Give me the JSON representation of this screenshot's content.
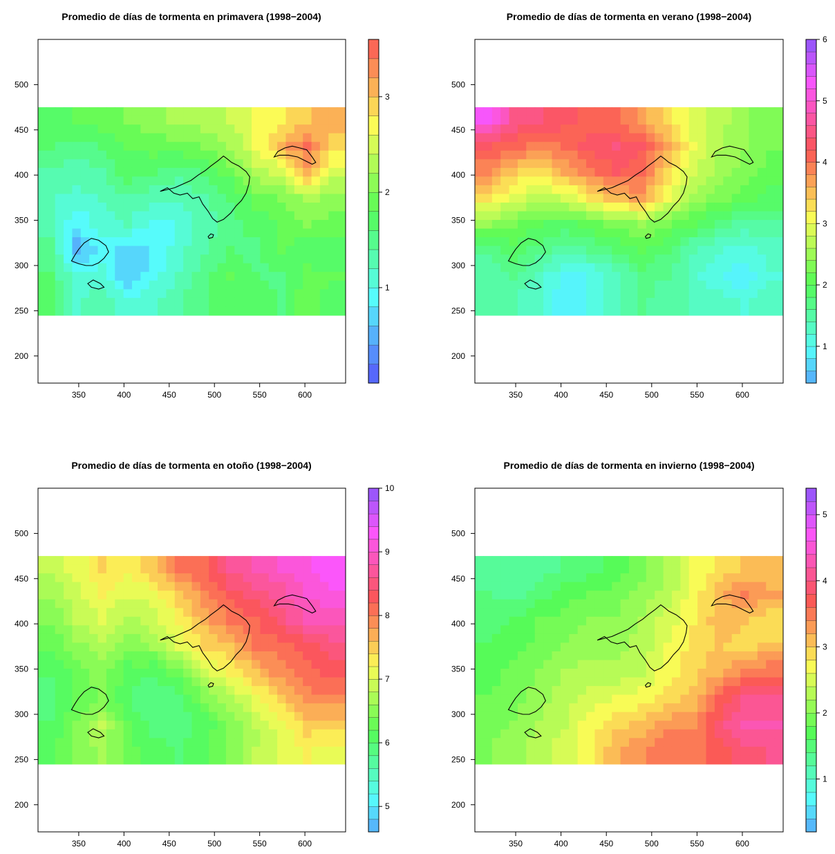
{
  "figure": {
    "panels": [
      {
        "title": "Promedio de días de tormenta en primavera (1998−2004)",
        "colorbar": {
          "ticks": [
            "1",
            "2",
            "3"
          ],
          "tick_values": [
            1,
            2,
            3
          ],
          "range": [
            0.0,
            3.6
          ],
          "levels": 18,
          "palette": "ramp_up"
        }
      },
      {
        "title": "Promedio de días de tormenta en verano (1998−2004)",
        "colorbar": {
          "ticks": [
            "1",
            "2",
            "3",
            "4",
            "5",
            "6"
          ],
          "tick_values": [
            1,
            2,
            3,
            4,
            5,
            6
          ],
          "range": [
            0.4,
            6.0
          ],
          "levels": 28,
          "palette": "ramp_down"
        }
      },
      {
        "title": "Promedio de días de tormenta en otoño (1998−2004)",
        "colorbar": {
          "ticks": [
            "5",
            "6",
            "7",
            "8",
            "9",
            "10"
          ],
          "tick_values": [
            5,
            6,
            7,
            8,
            9,
            10
          ],
          "range": [
            4.6,
            10.0
          ],
          "levels": 27,
          "palette": "ramp_down"
        }
      },
      {
        "title": "Promedio de días de tormenta en invierno (1998−2004)",
        "colorbar": {
          "ticks": [
            "1",
            "2",
            "3",
            "4",
            "5"
          ],
          "tick_values": [
            1,
            2,
            3,
            4,
            5
          ],
          "range": [
            0.2,
            5.4
          ],
          "levels": 26,
          "palette": "ramp_down"
        }
      }
    ]
  },
  "chart_data": [
    {
      "type": "heatmap",
      "title": "Promedio de días de tormenta en primavera (1998−2004)",
      "x_ticks": [
        350,
        400,
        450,
        500,
        550,
        600
      ],
      "y_ticks": [
        200,
        250,
        300,
        350,
        400,
        450,
        500
      ],
      "xlim": [
        305,
        645
      ],
      "ylim": [
        170,
        550
      ],
      "data_extent": {
        "x": [
          305,
          645
        ],
        "y": [
          245,
          475
        ]
      },
      "value_range": [
        0.0,
        3.6
      ],
      "colorbar_ticks": [
        1,
        2,
        3
      ],
      "field_grid": {
        "rows_top_to_bottom": true,
        "values": [
          [
            1.7,
            1.8,
            1.9,
            2.0,
            2.1,
            2.3,
            2.3,
            2.4,
            2.6,
            2.7,
            3.0,
            3.1
          ],
          [
            1.6,
            1.5,
            1.6,
            1.8,
            1.9,
            1.9,
            2.0,
            2.2,
            2.6,
            3.1,
            3.4,
            2.9
          ],
          [
            1.4,
            1.3,
            1.4,
            1.7,
            1.6,
            1.5,
            1.6,
            1.9,
            2.3,
            2.5,
            3.1,
            2.5
          ],
          [
            1.2,
            1.1,
            1.2,
            1.4,
            1.3,
            1.2,
            1.4,
            1.6,
            1.9,
            2.0,
            2.3,
            2.1
          ],
          [
            1.3,
            0.8,
            1.1,
            1.2,
            0.9,
            1.0,
            1.3,
            1.5,
            1.7,
            1.8,
            2.0,
            1.9
          ],
          [
            1.5,
            0.5,
            0.9,
            0.7,
            0.8,
            1.1,
            1.4,
            1.6,
            1.5,
            1.9,
            1.6,
            1.7
          ],
          [
            1.6,
            1.0,
            1.1,
            0.6,
            0.9,
            1.2,
            1.5,
            1.8,
            1.6,
            1.5,
            1.9,
            1.8
          ],
          [
            1.8,
            1.2,
            1.3,
            1.1,
            1.2,
            1.4,
            1.6,
            1.7,
            1.8,
            1.6,
            2.0,
            1.6
          ]
        ]
      }
    },
    {
      "type": "heatmap",
      "title": "Promedio de días de tormenta en verano (1998−2004)",
      "x_ticks": [
        350,
        400,
        450,
        500,
        550,
        600
      ],
      "y_ticks": [
        200,
        250,
        300,
        350,
        400,
        450,
        500
      ],
      "xlim": [
        305,
        645
      ],
      "ylim": [
        170,
        550
      ],
      "data_extent": {
        "x": [
          305,
          645
        ],
        "y": [
          245,
          475
        ]
      },
      "value_range": [
        0.4,
        6.0
      ],
      "colorbar_ticks": [
        1,
        2,
        3,
        4,
        5,
        6
      ],
      "field_grid": {
        "rows_top_to_bottom": true,
        "values": [
          [
            5.3,
            4.6,
            4.4,
            4.3,
            4.1,
            4.0,
            3.7,
            3.3,
            2.9,
            2.7,
            2.4,
            2.3
          ],
          [
            4.2,
            4.1,
            3.9,
            4.0,
            4.3,
            4.4,
            4.2,
            3.6,
            3.0,
            2.6,
            2.4,
            2.2
          ],
          [
            3.8,
            3.4,
            3.2,
            3.6,
            3.9,
            4.2,
            4.1,
            3.3,
            2.8,
            2.5,
            2.3,
            2.1
          ],
          [
            3.3,
            2.9,
            2.7,
            2.8,
            3.2,
            3.5,
            3.7,
            3.0,
            2.5,
            2.3,
            2.1,
            1.9
          ],
          [
            2.4,
            2.2,
            2.0,
            1.9,
            2.1,
            2.3,
            2.4,
            2.2,
            2.0,
            1.7,
            1.5,
            1.6
          ],
          [
            1.6,
            1.9,
            1.7,
            1.5,
            1.6,
            1.8,
            2.0,
            1.8,
            1.4,
            1.2,
            1.1,
            1.3
          ],
          [
            1.5,
            1.6,
            1.3,
            0.9,
            1.0,
            1.3,
            1.7,
            1.6,
            1.3,
            1.0,
            0.8,
            1.2
          ],
          [
            1.6,
            1.4,
            1.2,
            0.8,
            1.1,
            1.4,
            1.6,
            1.5,
            1.4,
            1.3,
            1.2,
            1.4
          ]
        ]
      }
    },
    {
      "type": "heatmap",
      "title": "Promedio de días de tormenta en otoño (1998−2004)",
      "x_ticks": [
        350,
        400,
        450,
        500,
        550,
        600
      ],
      "y_ticks": [
        200,
        250,
        300,
        350,
        400,
        450,
        500
      ],
      "xlim": [
        305,
        645
      ],
      "ylim": [
        170,
        550
      ],
      "data_extent": {
        "x": [
          305,
          645
        ],
        "y": [
          245,
          475
        ]
      },
      "value_range": [
        4.6,
        10.0
      ],
      "colorbar_ticks": [
        5,
        6,
        7,
        8,
        9,
        10
      ],
      "field_grid": {
        "rows_top_to_bottom": true,
        "values": [
          [
            6.8,
            7.1,
            7.4,
            7.2,
            7.6,
            8.0,
            8.2,
            8.6,
            8.8,
            9.0,
            9.2,
            9.4
          ],
          [
            6.6,
            6.9,
            7.2,
            7.0,
            7.1,
            7.5,
            7.9,
            8.3,
            8.5,
            8.7,
            9.0,
            9.2
          ],
          [
            6.4,
            6.8,
            7.0,
            6.7,
            6.9,
            7.2,
            7.7,
            8.0,
            8.2,
            8.5,
            8.8,
            8.9
          ],
          [
            6.2,
            6.5,
            6.7,
            6.4,
            6.6,
            7.0,
            7.4,
            7.6,
            8.0,
            8.1,
            8.3,
            8.5
          ],
          [
            6.0,
            6.3,
            6.5,
            6.1,
            6.0,
            6.3,
            6.9,
            7.2,
            7.6,
            7.9,
            8.1,
            8.3
          ],
          [
            5.9,
            6.2,
            6.4,
            6.0,
            5.8,
            5.9,
            6.4,
            6.7,
            7.1,
            7.5,
            7.9,
            8.0
          ],
          [
            6.0,
            6.4,
            6.8,
            6.2,
            5.9,
            5.8,
            6.1,
            6.4,
            6.8,
            7.1,
            7.5,
            7.4
          ],
          [
            6.2,
            6.5,
            6.6,
            6.3,
            6.1,
            6.0,
            6.2,
            6.5,
            6.8,
            7.0,
            7.2,
            7.1
          ]
        ]
      }
    },
    {
      "type": "heatmap",
      "title": "Promedio de días de tormenta en invierno (1998−2004)",
      "x_ticks": [
        350,
        400,
        450,
        500,
        550,
        600
      ],
      "y_ticks": [
        200,
        250,
        300,
        350,
        400,
        450,
        500
      ],
      "xlim": [
        305,
        645
      ],
      "ylim": [
        170,
        550
      ],
      "data_extent": {
        "x": [
          305,
          645
        ],
        "y": [
          245,
          475
        ]
      },
      "value_range": [
        0.2,
        5.4
      ],
      "colorbar_ticks": [
        1,
        2,
        3,
        4,
        5
      ],
      "field_grid": {
        "rows_top_to_bottom": true,
        "values": [
          [
            1.3,
            1.2,
            1.3,
            1.4,
            1.5,
            1.7,
            1.9,
            2.2,
            2.6,
            2.9,
            3.0,
            3.1
          ],
          [
            1.4,
            1.3,
            1.5,
            1.7,
            1.8,
            1.9,
            2.1,
            2.3,
            2.7,
            3.1,
            3.5,
            3.2
          ],
          [
            1.5,
            1.6,
            1.8,
            1.9,
            2.0,
            2.0,
            2.2,
            2.5,
            2.8,
            3.1,
            3.0,
            2.8
          ],
          [
            1.6,
            1.7,
            1.9,
            2.0,
            2.1,
            2.1,
            2.3,
            2.6,
            2.9,
            3.0,
            2.9,
            3.1
          ],
          [
            1.7,
            1.9,
            2.0,
            2.2,
            2.3,
            2.3,
            2.4,
            2.7,
            2.9,
            3.2,
            3.5,
            3.6
          ],
          [
            1.8,
            1.9,
            2.1,
            2.3,
            2.5,
            2.6,
            2.7,
            2.9,
            3.1,
            3.6,
            4.1,
            4.0
          ],
          [
            1.9,
            2.0,
            2.2,
            2.4,
            2.7,
            2.9,
            3.1,
            3.3,
            3.4,
            3.9,
            4.2,
            4.3
          ],
          [
            2.0,
            2.1,
            2.3,
            2.5,
            2.8,
            3.2,
            3.4,
            3.6,
            3.5,
            3.7,
            3.9,
            4.0
          ]
        ]
      }
    }
  ]
}
